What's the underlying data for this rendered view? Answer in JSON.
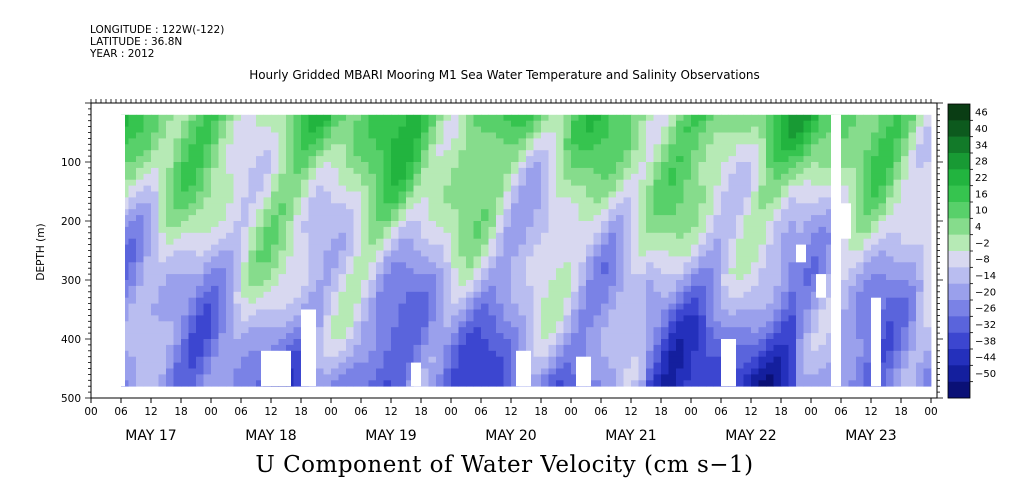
{
  "header": {
    "longitude": "LONGITUDE : 122W(-122)",
    "latitude": "LATITUDE : 36.8N",
    "year": "YEAR : 2012"
  },
  "chart_data": {
    "type": "heatmap",
    "title": "Hourly Gridded MBARI Mooring M1 Sea Water Temperature and Salinity Observations",
    "bottom_title": "U Component of Water Velocity (cm s−1)",
    "ylabel": "DEPTH (m)",
    "ylim": [
      500,
      0
    ],
    "y_ticks": [
      {
        "value": 100,
        "label": "100"
      },
      {
        "value": 200,
        "label": "200"
      },
      {
        "value": 300,
        "label": "300"
      },
      {
        "value": 400,
        "label": "400"
      },
      {
        "value": 500,
        "label": "500"
      }
    ],
    "x_hour_ticks": [
      "00",
      "06",
      "12",
      "18",
      "00",
      "06",
      "12",
      "18",
      "00",
      "06",
      "12",
      "18",
      "00",
      "06",
      "12",
      "18",
      "00",
      "06",
      "12",
      "18",
      "00",
      "06",
      "12",
      "18",
      "00",
      "06",
      "12",
      "18",
      "00"
    ],
    "x_dates": [
      "MAY 17",
      "MAY 18",
      "MAY 19",
      "MAY 20",
      "MAY 21",
      "MAY 22",
      "MAY 23"
    ],
    "colorbar": {
      "labels": [
        "46",
        "40",
        "34",
        "28",
        "22",
        "16",
        "10",
        "4",
        "−2",
        "−8",
        "−14",
        "−20",
        "−26",
        "−32",
        "−38",
        "−44",
        "−50"
      ],
      "colors": [
        "#0a3d14",
        "#0d5a1e",
        "#127a29",
        "#189a34",
        "#22b43f",
        "#36c44f",
        "#58d06a",
        "#86dc8c",
        "#b6eab5",
        "#d8d8f0",
        "#b9bdf0",
        "#9aa0ec",
        "#7a82e6",
        "#5a64dc",
        "#3c46d0",
        "#2430bc",
        "#141f9e",
        "#0a1076"
      ]
    },
    "x_range_hours": [
      0,
      168
    ],
    "data_coverage_hours": [
      6,
      168
    ],
    "depth_bins_m": [
      20,
      40,
      60,
      80,
      100,
      120,
      140,
      160,
      180,
      200,
      220,
      240,
      260,
      280,
      300,
      320,
      340,
      360,
      380,
      400,
      420,
      440,
      460,
      480
    ],
    "pattern_note_values": "u velocity approx. range -30 to 20 cm/s; positive (green) near surface, negative (blue) at depth"
  }
}
